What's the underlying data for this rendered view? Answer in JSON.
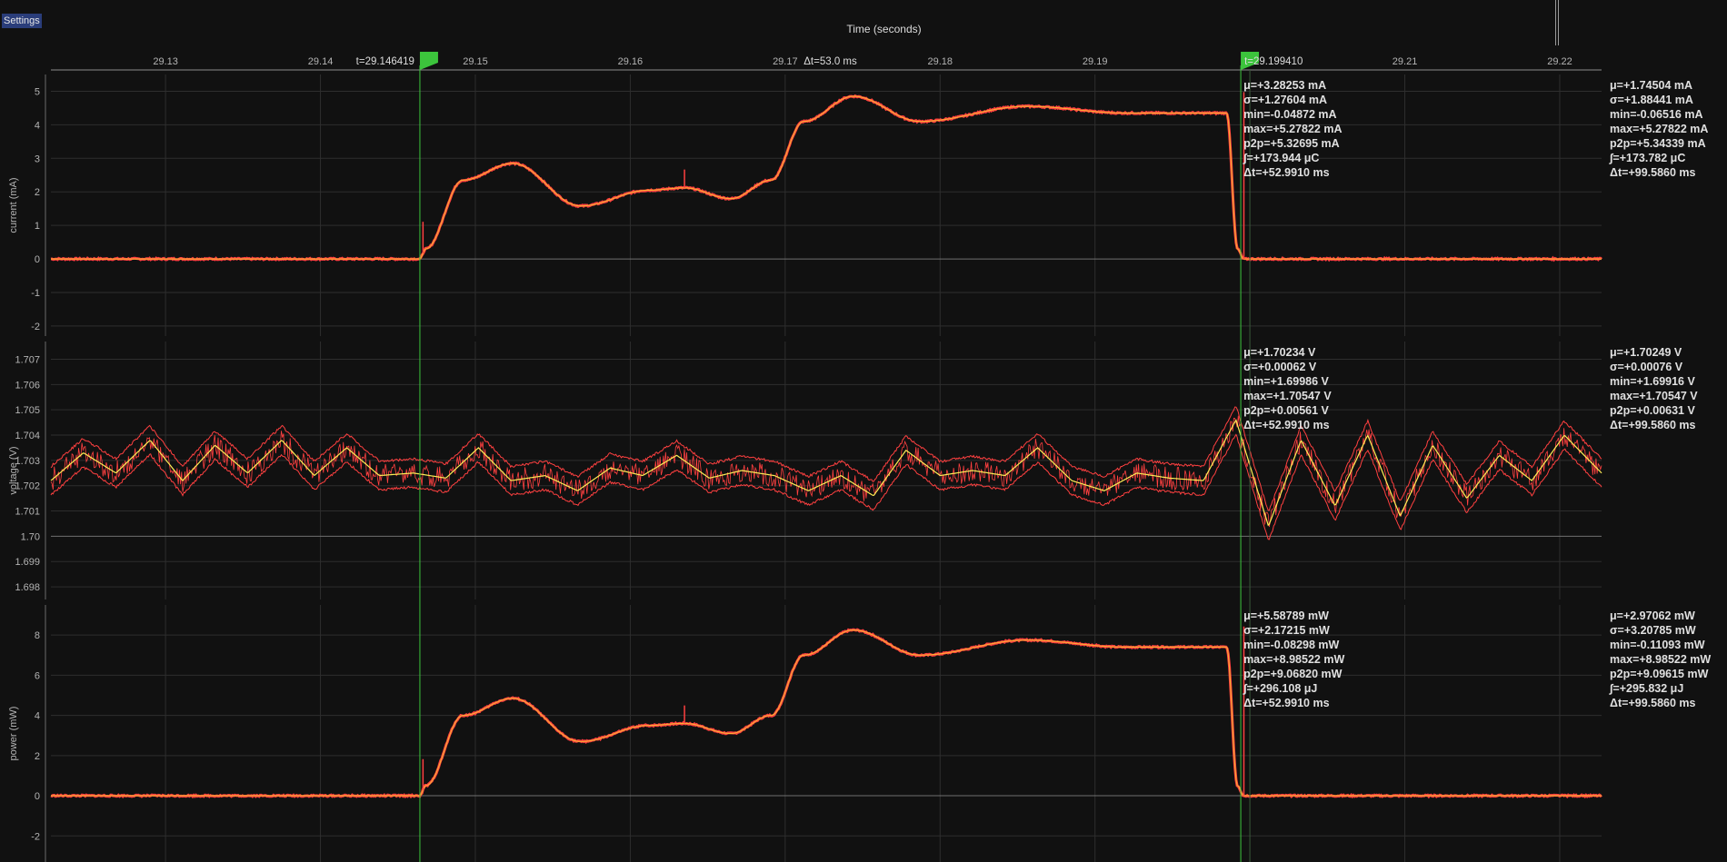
{
  "toolbar": {
    "settings_label": "Settings"
  },
  "time_axis": {
    "title": "Time (seconds)",
    "range": [
      29.1226,
      29.2227
    ],
    "ticks": [
      "29.13",
      "29.14",
      "29.15",
      "29.16",
      "29.17",
      "29.18",
      "29.19",
      "29.21",
      "29.22"
    ],
    "tick_values": [
      29.13,
      29.14,
      29.15,
      29.16,
      29.17,
      29.18,
      29.19,
      29.21,
      29.22
    ],
    "delta_label": "Δt=53.0 ms"
  },
  "markers": {
    "color": "#3cc43c",
    "left": {
      "t": 29.146419,
      "label": "t=29.146419"
    },
    "right": {
      "t": 29.19941,
      "label": "t=29.199410"
    }
  },
  "colors": {
    "trace": "#ff4040",
    "mean": "#ffee55",
    "mean_orange": "#ffaa33",
    "grid": "#2e2e2e",
    "zero": "#707070"
  },
  "chart_data": [
    {
      "type": "line",
      "title": "",
      "ylabel": "current (mA)",
      "ylim": [
        -2.3,
        5.5
      ],
      "yticks": [
        "5",
        "4",
        "3",
        "2",
        "1",
        "0",
        "-1",
        "-2"
      ],
      "ytick_values": [
        5,
        4,
        3,
        2,
        1,
        0,
        -1,
        -2
      ],
      "x": [
        29.1226,
        29.1464,
        29.1468,
        29.1492,
        29.1524,
        29.1568,
        29.1612,
        29.1635,
        29.1665,
        29.1691,
        29.1712,
        29.1744,
        29.1787,
        29.1856,
        29.192,
        29.1985,
        29.1992,
        29.1996,
        29.2227
      ],
      "y": [
        0,
        0,
        0.3,
        2.35,
        2.85,
        1.58,
        2.05,
        2.12,
        1.8,
        2.35,
        4.1,
        4.85,
        4.1,
        4.55,
        4.35,
        4.35,
        0.3,
        0,
        0
      ],
      "stats_window": [
        "μ=+3.28253 mA",
        "σ=+1.27604 mA",
        "min=-0.04872 mA",
        "max=+5.27822 mA",
        "p2p=+5.32695 mA",
        "∫=+173.944 μC",
        "Δt=+52.9910 ms"
      ],
      "stats_total": [
        "μ=+1.74504 mA",
        "σ=+1.88441 mA",
        "min=-0.06516 mA",
        "max=+5.27822 mA",
        "p2p=+5.34339 mA",
        "∫=+173.782 μC",
        "Δt=+99.5860 ms"
      ]
    },
    {
      "type": "line",
      "title": "",
      "ylabel": "voltage (V)",
      "ylim": [
        1.6975,
        1.7077
      ],
      "yticks": [
        "1.707",
        "1.706",
        "1.705",
        "1.704",
        "1.703",
        "1.702",
        "1.701",
        "1.70",
        "1.699",
        "1.698"
      ],
      "ytick_values": [
        1.707,
        1.706,
        1.705,
        1.704,
        1.703,
        1.702,
        1.701,
        1.7,
        1.699,
        1.698
      ],
      "x": [
        29.1226,
        29.1247,
        29.1268,
        29.129,
        29.1311,
        29.1332,
        29.1353,
        29.1375,
        29.1396,
        29.1417,
        29.1438,
        29.146,
        29.1481,
        29.1502,
        29.1523,
        29.1545,
        29.1566,
        29.1587,
        29.1608,
        29.163,
        29.1651,
        29.1672,
        29.1693,
        29.1715,
        29.1736,
        29.1757,
        29.1778,
        29.18,
        29.1821,
        29.1842,
        29.1863,
        29.1885,
        29.1906,
        29.1927,
        29.1948,
        29.197,
        29.1991,
        29.2012,
        29.2033,
        29.2055,
        29.2076,
        29.2097,
        29.2118,
        29.214,
        29.2161,
        29.2182,
        29.2203,
        29.2227
      ],
      "y": [
        1.7022,
        1.7033,
        1.7025,
        1.7038,
        1.7022,
        1.7036,
        1.7025,
        1.7038,
        1.7024,
        1.7035,
        1.7024,
        1.7025,
        1.7023,
        1.7035,
        1.7022,
        1.7024,
        1.7018,
        1.7027,
        1.7024,
        1.7032,
        1.7023,
        1.7026,
        1.7024,
        1.7018,
        1.7024,
        1.7016,
        1.7034,
        1.7024,
        1.7026,
        1.7024,
        1.7035,
        1.7022,
        1.7018,
        1.7025,
        1.7023,
        1.7022,
        1.7046,
        1.7004,
        1.7038,
        1.7012,
        1.704,
        1.7008,
        1.7036,
        1.7015,
        1.7032,
        1.7022,
        1.704,
        1.7025
      ],
      "stats_window": [
        "μ=+1.70234  V",
        "σ=+0.00062  V",
        "min=+1.69986  V",
        "max=+1.70547  V",
        "p2p=+0.00561  V",
        "Δt=+52.9910 ms"
      ],
      "stats_total": [
        "μ=+1.70249  V",
        "σ=+0.00076  V",
        "min=+1.69916  V",
        "max=+1.70547  V",
        "p2p=+0.00631  V",
        "Δt=+99.5860 ms"
      ]
    },
    {
      "type": "line",
      "title": "",
      "ylabel": "power (mW)",
      "ylim": [
        -3.3,
        9.5
      ],
      "yticks": [
        "8",
        "6",
        "4",
        "2",
        "0",
        "-2"
      ],
      "ytick_values": [
        8,
        6,
        4,
        2,
        0,
        -2
      ],
      "x": [
        29.1226,
        29.1464,
        29.1468,
        29.1492,
        29.1524,
        29.1568,
        29.1612,
        29.1635,
        29.1665,
        29.1691,
        29.1712,
        29.1744,
        29.1787,
        29.1856,
        29.192,
        29.1985,
        29.1992,
        29.1996,
        29.2227
      ],
      "y": [
        0,
        0,
        0.5,
        4.0,
        4.85,
        2.7,
        3.5,
        3.6,
        3.1,
        4.0,
        7.0,
        8.25,
        7.0,
        7.75,
        7.4,
        7.4,
        0.5,
        0,
        0
      ],
      "stats_window": [
        "μ=+5.58789 mW",
        "σ=+2.17215 mW",
        "min=-0.08298 mW",
        "max=+8.98522 mW",
        "p2p=+9.06820 mW",
        "∫=+296.108 μJ",
        "Δt=+52.9910 ms"
      ],
      "stats_total": [
        "μ=+2.97062 mW",
        "σ=+3.20785 mW",
        "min=-0.11093 mW",
        "max=+8.98522 mW",
        "p2p=+9.09615 mW",
        "∫=+295.832 μJ",
        "Δt=+99.5860 ms"
      ]
    }
  ]
}
